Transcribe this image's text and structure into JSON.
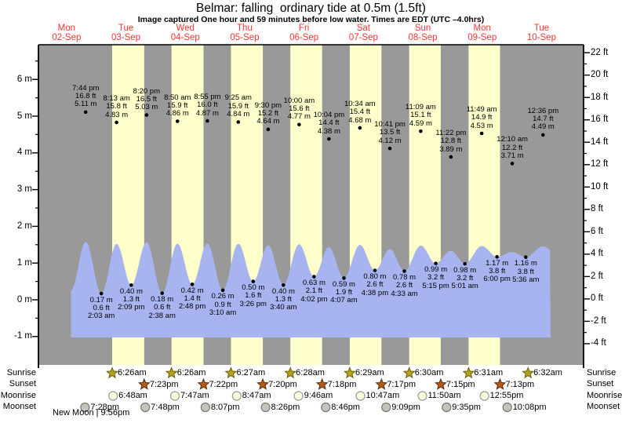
{
  "title": "Belmar: falling  ordinary tide at 0.5m (1.5ft)",
  "subtitle": "Image captured One hour and 59 minutes before low water. Times are EDT (UTC –4.0hrs)",
  "days": [
    {
      "name": "Mon",
      "date": "02-Sep"
    },
    {
      "name": "Tue",
      "date": "03-Sep"
    },
    {
      "name": "Wed",
      "date": "04-Sep"
    },
    {
      "name": "Thu",
      "date": "05-Sep"
    },
    {
      "name": "Fri",
      "date": "06-Sep"
    },
    {
      "name": "Sat",
      "date": "07-Sep"
    },
    {
      "name": "Sun",
      "date": "08-Sep"
    },
    {
      "name": "Mon",
      "date": "09-Sep"
    },
    {
      "name": "Tue",
      "date": "10-Sep"
    }
  ],
  "axes": {
    "left_tick_labels": [
      "6 m",
      "5 m",
      "4 m",
      "3 m",
      "2 m",
      "1 m",
      "0 m",
      "-1 m"
    ],
    "right_tick_labels": [
      "22 ft",
      "20 ft",
      "18 ft",
      "16 ft",
      "14 ft",
      "12 ft",
      "10 ft",
      "8 ft",
      "6 ft",
      "4 ft",
      "2 ft",
      "0 ft",
      "-2 ft",
      "-4 ft"
    ]
  },
  "chart_data": {
    "type": "area",
    "title": "Belmar: falling  ordinary tide at 0.5m (1.5ft)",
    "xlabel": "days 02-Sep to 10-Sep",
    "ylabel_left": "height (m)",
    "ylabel_right": "height (ft)",
    "ylim_m": [
      -1,
      6
    ],
    "ylim_ft": [
      -4,
      22
    ],
    "legend": "none",
    "tide_extremes": [
      {
        "type": "high",
        "time": "7:44 pm",
        "ft": "16.8 ft",
        "m": "5.11 m",
        "t": -10.7
      },
      {
        "type": "low",
        "time": "2:03 am",
        "ft": "0.6 ft",
        "m": "0.17 m",
        "t": -4.38
      },
      {
        "type": "high",
        "time": "8:13 am",
        "ft": "15.8 ft",
        "m": "4.83 m",
        "t": 1.78
      },
      {
        "type": "low",
        "time": "2:09 pm",
        "ft": "1.3 ft",
        "m": "0.40 m",
        "t": 7.72
      },
      {
        "type": "high",
        "time": "8:20 pm",
        "ft": "16.5 ft",
        "m": "5.03 m",
        "t": 13.9
      },
      {
        "type": "low",
        "time": "2:38 am",
        "ft": "0.6 ft",
        "m": "0.18 m",
        "t": 20.2
      },
      {
        "type": "high",
        "time": "8:50 am",
        "ft": "15.9 ft",
        "m": "4.86 m",
        "t": 26.4
      },
      {
        "type": "low",
        "time": "2:48 pm",
        "ft": "1.4 ft",
        "m": "0.42 m",
        "t": 32.37
      },
      {
        "type": "high",
        "time": "8:55 pm",
        "ft": "16.0 ft",
        "m": "4.87 m",
        "t": 38.48
      },
      {
        "type": "low",
        "time": "3:10 am",
        "ft": "0.9 ft",
        "m": "0.26 m",
        "t": 44.73
      },
      {
        "type": "high",
        "time": "9:25 am",
        "ft": "15.9 ft",
        "m": "4.84 m",
        "t": 50.98
      },
      {
        "type": "low",
        "time": "3:26 pm",
        "ft": "1.6 ft",
        "m": "0.50 m",
        "t": 57.0
      },
      {
        "type": "high",
        "time": "9:30 pm",
        "ft": "15.2 ft",
        "m": "4.64 m",
        "t": 63.07
      },
      {
        "type": "low",
        "time": "3:40 am",
        "ft": "1.3 ft",
        "m": "0.40 m",
        "t": 69.23
      },
      {
        "type": "high",
        "time": "10:00 am",
        "ft": "15.6 ft",
        "m": "4.77 m",
        "t": 75.57
      },
      {
        "type": "low",
        "time": "4:02 pm",
        "ft": "2.1 ft",
        "m": "0.63 m",
        "t": 81.6
      },
      {
        "type": "high",
        "time": "10:04 pm",
        "ft": "14.4 ft",
        "m": "4.38 m",
        "t": 87.63
      },
      {
        "type": "low",
        "time": "4:07 am",
        "ft": "1.9 ft",
        "m": "0.59 m",
        "t": 93.68
      },
      {
        "type": "high",
        "time": "10:34 am",
        "ft": "15.4 ft",
        "m": "4.68 m",
        "t": 100.13
      },
      {
        "type": "low",
        "time": "4:38 pm",
        "ft": "2.6 ft",
        "m": "0.80 m",
        "t": 106.2
      },
      {
        "type": "high",
        "time": "10:41 pm",
        "ft": "13.5 ft",
        "m": "4.12 m",
        "t": 112.25
      },
      {
        "type": "low",
        "time": "4:33 am",
        "ft": "2.6 ft",
        "m": "0.78 m",
        "t": 118.12
      },
      {
        "type": "high",
        "time": "11:09 am",
        "ft": "15.1 ft",
        "m": "4.59 m",
        "t": 124.72
      },
      {
        "type": "low",
        "time": "5:15 pm",
        "ft": "3.2 ft",
        "m": "0.99 m",
        "t": 130.82
      },
      {
        "type": "high",
        "time": "11:22 pm",
        "ft": "12.8 ft",
        "m": "3.89 m",
        "t": 136.93
      },
      {
        "type": "low",
        "time": "5:01 am",
        "ft": "3.2 ft",
        "m": "0.98 m",
        "t": 142.58
      },
      {
        "type": "high",
        "time": "11:49 am",
        "ft": "14.9 ft",
        "m": "4.53 m",
        "t": 149.38
      },
      {
        "type": "low",
        "time": "6:00 pm",
        "ft": "3.8 ft",
        "m": "1.17 m",
        "t": 155.57
      },
      {
        "type": "high",
        "time": "12:10 am",
        "ft": "12.2 ft",
        "m": "3.71 m",
        "t": 161.73
      },
      {
        "type": "low",
        "time": "5:36 am",
        "ft": "3.8 ft",
        "m": "1.16 m",
        "t": 167.17
      },
      {
        "type": "high",
        "time": "12:36 pm",
        "ft": "14.7 ft",
        "m": "4.49 m",
        "t": 174.17
      }
    ]
  },
  "astro": {
    "rows": [
      {
        "key": "sunrise",
        "label": "Sunrise",
        "entries": [
          {
            "time": "6:26am",
            "t": 0.0
          },
          {
            "time": "6:26am",
            "t": 24.0
          },
          {
            "time": "6:27am",
            "t": 48.02
          },
          {
            "time": "6:28am",
            "t": 72.03
          },
          {
            "time": "6:29am",
            "t": 96.05
          },
          {
            "time": "6:30am",
            "t": 120.07
          },
          {
            "time": "6:31am",
            "t": 144.08
          },
          {
            "time": "6:32am",
            "t": 168.1
          }
        ]
      },
      {
        "key": "sunset",
        "label": "Sunset",
        "entries": [
          {
            "time": "7:23pm",
            "t": 12.95
          },
          {
            "time": "7:22pm",
            "t": 36.93
          },
          {
            "time": "7:20pm",
            "t": 60.9
          },
          {
            "time": "7:18pm",
            "t": 84.87
          },
          {
            "time": "7:17pm",
            "t": 108.85
          },
          {
            "time": "7:15pm",
            "t": 132.82
          },
          {
            "time": "7:13pm",
            "t": 156.78
          }
        ]
      },
      {
        "key": "moonrise",
        "label": "Moonrise",
        "entries": [
          {
            "time": "6:48am",
            "t": 0.37
          },
          {
            "time": "7:47am",
            "t": 25.35
          },
          {
            "time": "8:47am",
            "t": 50.35
          },
          {
            "time": "9:46am",
            "t": 75.33
          },
          {
            "time": "10:47am",
            "t": 100.35
          },
          {
            "time": "11:50am",
            "t": 125.4
          },
          {
            "time": "12:55pm",
            "t": 150.48
          }
        ]
      },
      {
        "key": "moonset",
        "label": "Moonset",
        "entries": [
          {
            "time": "7:28pm",
            "t": -10.97
          },
          {
            "time": "7:48pm",
            "t": 13.37
          },
          {
            "time": "8:07pm",
            "t": 37.68
          },
          {
            "time": "8:26pm",
            "t": 62.0
          },
          {
            "time": "8:46pm",
            "t": 86.33
          },
          {
            "time": "9:09pm",
            "t": 110.72
          },
          {
            "time": "9:35pm",
            "t": 135.15
          },
          {
            "time": "10:08pm",
            "t": 159.7
          }
        ]
      }
    ],
    "new_moon": "New Moon | 9:56pm"
  },
  "colors": {
    "day_band": "#ffffcc",
    "night_band": "#999999",
    "water": "#a8b4f0",
    "date_red": "#ff3333",
    "sunrise_star": "#b3a31c",
    "sunrise_star_edge": "#6b6110",
    "sunset_star": "#b05a20",
    "sunset_star_edge": "#5f2d0c",
    "moonrise_fill": "#ffffdd",
    "moonrise_edge": "#999999",
    "moonset_fill": "#c4c4ba",
    "moonset_edge": "#777777"
  }
}
